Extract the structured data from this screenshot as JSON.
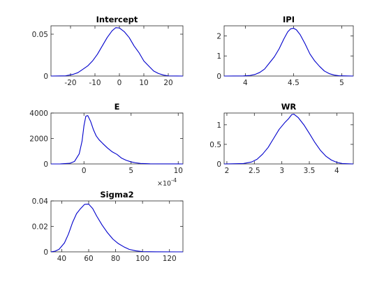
{
  "chart_data": [
    {
      "type": "line",
      "title": "Intercept",
      "xlim": [
        -28,
        26
      ],
      "ylim": [
        0,
        0.06
      ],
      "xticks": [
        -20,
        -10,
        0,
        10,
        20
      ],
      "xtick_labels": [
        "-20",
        "-10",
        "0",
        "10",
        "20"
      ],
      "yticks": [
        0,
        0.05
      ],
      "ytick_labels": [
        "0",
        "0.05"
      ],
      "color": "#0000cc",
      "series": [
        {
          "x": [
            -28,
            -22,
            -19,
            -17,
            -15,
            -13,
            -11,
            -9,
            -7,
            -5,
            -3,
            -1.5,
            0,
            2,
            4,
            6,
            8,
            10,
            12,
            14,
            16,
            18,
            20,
            26
          ],
          "y": [
            0,
            0.0003,
            0.002,
            0.004,
            0.008,
            0.012,
            0.018,
            0.026,
            0.036,
            0.046,
            0.054,
            0.0578,
            0.0574,
            0.053,
            0.046,
            0.036,
            0.028,
            0.018,
            0.012,
            0.006,
            0.003,
            0.0012,
            0.0002,
            0
          ]
        }
      ]
    },
    {
      "type": "line",
      "title": "IPI",
      "xlim": [
        3.78,
        5.12
      ],
      "ylim": [
        0,
        2.5
      ],
      "xticks": [
        4,
        4.5,
        5
      ],
      "xtick_labels": [
        "4",
        "4.5",
        "5"
      ],
      "yticks": [
        0,
        1,
        2
      ],
      "ytick_labels": [
        "0",
        "1",
        "2"
      ],
      "color": "#0000cc",
      "series": [
        {
          "x": [
            3.78,
            3.98,
            4.05,
            4.1,
            4.15,
            4.2,
            4.25,
            4.3,
            4.35,
            4.4,
            4.44,
            4.47,
            4.5,
            4.53,
            4.57,
            4.62,
            4.67,
            4.72,
            4.77,
            4.82,
            4.87,
            4.92,
            4.97,
            5.12
          ],
          "y": [
            0,
            0.005,
            0.03,
            0.08,
            0.18,
            0.35,
            0.65,
            0.95,
            1.35,
            1.85,
            2.2,
            2.35,
            2.38,
            2.3,
            2.05,
            1.6,
            1.1,
            0.75,
            0.48,
            0.25,
            0.12,
            0.05,
            0.015,
            0
          ]
        }
      ]
    },
    {
      "type": "line",
      "title": "E",
      "xlim": [
        -0.00035,
        0.00105
      ],
      "ylim": [
        0,
        4000
      ],
      "xticks": [
        0,
        0.0005,
        0.001
      ],
      "xtick_labels": [
        "0",
        "5",
        "10"
      ],
      "yticks": [
        0,
        2000,
        4000
      ],
      "ytick_labels": [
        "0",
        "2000",
        "4000"
      ],
      "x_multiplier": "×10",
      "x_multiplier_exp": "-4",
      "color": "#0000cc",
      "series": [
        {
          "x": [
            -0.00035,
            -0.00025,
            -0.00015,
            -0.0001,
            -5e-05,
            -2e-05,
            0,
            2e-05,
            4e-05,
            7e-05,
            0.0001,
            0.00013,
            0.00016,
            0.0002,
            0.00025,
            0.0003,
            0.00035,
            0.0004,
            0.00045,
            0.0005,
            0.00055,
            0.0006,
            0.0007,
            0.00105
          ],
          "y": [
            0,
            5,
            50,
            200,
            800,
            1800,
            3000,
            3750,
            3800,
            3350,
            2700,
            2200,
            1900,
            1600,
            1250,
            950,
            750,
            450,
            280,
            160,
            90,
            40,
            10,
            0
          ]
        }
      ]
    },
    {
      "type": "line",
      "title": "WR",
      "xlim": [
        1.95,
        4.3
      ],
      "ylim": [
        0,
        1.3
      ],
      "xticks": [
        2,
        2.5,
        3,
        3.5,
        4
      ],
      "xtick_labels": [
        "2",
        "2.5",
        "3",
        "3.5",
        "4"
      ],
      "yticks": [
        0,
        0.5,
        1
      ],
      "ytick_labels": [
        "0",
        "0.5",
        "1"
      ],
      "color": "#0000cc",
      "series": [
        {
          "x": [
            1.95,
            2.3,
            2.45,
            2.55,
            2.65,
            2.75,
            2.85,
            2.95,
            3.05,
            3.12,
            3.18,
            3.22,
            3.3,
            3.4,
            3.5,
            3.6,
            3.7,
            3.8,
            3.9,
            4.0,
            4.1,
            4.3
          ],
          "y": [
            0,
            0.01,
            0.05,
            0.12,
            0.25,
            0.42,
            0.65,
            0.88,
            1.05,
            1.15,
            1.26,
            1.27,
            1.18,
            1.0,
            0.78,
            0.55,
            0.35,
            0.2,
            0.1,
            0.04,
            0.01,
            0
          ]
        }
      ]
    },
    {
      "type": "line",
      "title": "Sigma2",
      "xlim": [
        32,
        130
      ],
      "ylim": [
        0,
        0.04
      ],
      "xticks": [
        40,
        60,
        80,
        100,
        120
      ],
      "xtick_labels": [
        "40",
        "60",
        "80",
        "100",
        "120"
      ],
      "yticks": [
        0,
        0.02,
        0.04
      ],
      "ytick_labels": [
        "0",
        "0.02",
        "0.04"
      ],
      "color": "#0000cc",
      "series": [
        {
          "x": [
            32,
            35,
            38,
            42,
            45,
            48,
            51,
            54,
            57,
            60,
            63,
            66,
            70,
            74,
            78,
            82,
            86,
            90,
            95,
            100,
            110,
            130
          ],
          "y": [
            0,
            0.0005,
            0.002,
            0.007,
            0.014,
            0.023,
            0.03,
            0.034,
            0.0373,
            0.0375,
            0.034,
            0.028,
            0.021,
            0.015,
            0.01,
            0.0065,
            0.004,
            0.002,
            0.0008,
            0.0002,
            2e-05,
            0
          ]
        }
      ]
    }
  ]
}
